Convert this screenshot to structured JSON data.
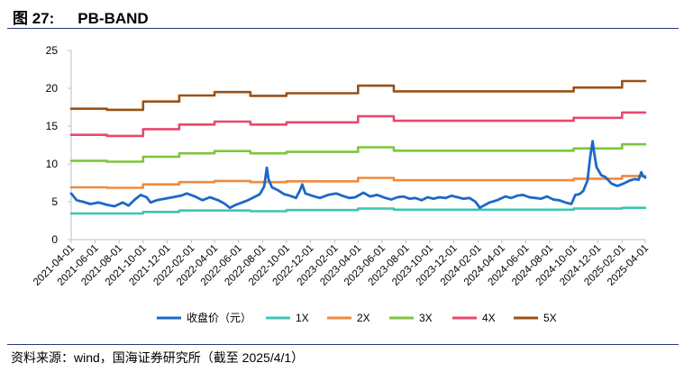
{
  "figure": {
    "label": "图 27:",
    "title": "PB-BAND",
    "source": "资料来源：wind，国海证券研究所（截至 2025/4/1）"
  },
  "chart_data": {
    "type": "line",
    "xlim": [
      "2021-04-01",
      "2025-04-01"
    ],
    "ylim": [
      0,
      25
    ],
    "y_ticks": [
      0,
      5,
      10,
      15,
      20,
      25
    ],
    "x_ticks": [
      "2021-04-01",
      "2021-06-01",
      "2021-08-01",
      "2021-10-01",
      "2021-12-01",
      "2022-02-01",
      "2022-04-01",
      "2022-06-01",
      "2022-08-01",
      "2022-10-01",
      "2022-12-01",
      "2023-02-01",
      "2023-04-01",
      "2023-06-01",
      "2023-08-01",
      "2023-10-01",
      "2023-12-01",
      "2024-02-01",
      "2024-04-01",
      "2024-06-01",
      "2024-08-01",
      "2024-10-01",
      "2024-12-01",
      "2025-02-01",
      "2025-04-01"
    ],
    "grid": false,
    "legend_position": "bottom",
    "series": [
      {
        "name": "收盘价（元）",
        "color": "#1f67c8",
        "step": false,
        "points": [
          [
            "2021-04-01",
            6.1
          ],
          [
            "2021-04-15",
            5.2
          ],
          [
            "2021-05-01",
            5.0
          ],
          [
            "2021-05-20",
            4.7
          ],
          [
            "2021-06-10",
            4.9
          ],
          [
            "2021-07-01",
            4.6
          ],
          [
            "2021-07-20",
            4.4
          ],
          [
            "2021-08-10",
            4.9
          ],
          [
            "2021-08-25",
            4.5
          ],
          [
            "2021-09-10",
            5.3
          ],
          [
            "2021-09-25",
            5.9
          ],
          [
            "2021-10-10",
            5.6
          ],
          [
            "2021-10-20",
            4.9
          ],
          [
            "2021-11-05",
            5.2
          ],
          [
            "2021-11-25",
            5.4
          ],
          [
            "2021-12-15",
            5.6
          ],
          [
            "2022-01-05",
            5.8
          ],
          [
            "2022-01-20",
            6.1
          ],
          [
            "2022-02-10",
            5.7
          ],
          [
            "2022-03-01",
            5.2
          ],
          [
            "2022-03-20",
            5.6
          ],
          [
            "2022-04-10",
            5.2
          ],
          [
            "2022-04-25",
            4.8
          ],
          [
            "2022-05-10",
            4.2
          ],
          [
            "2022-05-25",
            4.6
          ],
          [
            "2022-06-10",
            4.9
          ],
          [
            "2022-06-25",
            5.2
          ],
          [
            "2022-07-10",
            5.6
          ],
          [
            "2022-07-25",
            6.0
          ],
          [
            "2022-08-05",
            7.0
          ],
          [
            "2022-08-12",
            9.5
          ],
          [
            "2022-08-16",
            8.0
          ],
          [
            "2022-08-25",
            6.9
          ],
          [
            "2022-09-10",
            6.5
          ],
          [
            "2022-09-25",
            6.0
          ],
          [
            "2022-10-10",
            5.8
          ],
          [
            "2022-10-25",
            5.5
          ],
          [
            "2022-11-05",
            6.6
          ],
          [
            "2022-11-10",
            7.3
          ],
          [
            "2022-11-18",
            6.1
          ],
          [
            "2022-12-05",
            5.8
          ],
          [
            "2022-12-25",
            5.5
          ],
          [
            "2023-01-15",
            5.9
          ],
          [
            "2023-02-05",
            6.1
          ],
          [
            "2023-02-20",
            5.8
          ],
          [
            "2023-03-10",
            5.5
          ],
          [
            "2023-03-25",
            5.6
          ],
          [
            "2023-04-15",
            6.2
          ],
          [
            "2023-05-01",
            5.7
          ],
          [
            "2023-05-20",
            5.9
          ],
          [
            "2023-06-10",
            5.5
          ],
          [
            "2023-06-25",
            5.3
          ],
          [
            "2023-07-10",
            5.6
          ],
          [
            "2023-07-25",
            5.7
          ],
          [
            "2023-08-10",
            5.4
          ],
          [
            "2023-08-25",
            5.5
          ],
          [
            "2023-09-10",
            5.2
          ],
          [
            "2023-09-25",
            5.6
          ],
          [
            "2023-10-10",
            5.4
          ],
          [
            "2023-10-25",
            5.6
          ],
          [
            "2023-11-10",
            5.5
          ],
          [
            "2023-11-25",
            5.8
          ],
          [
            "2023-12-10",
            5.6
          ],
          [
            "2023-12-25",
            5.4
          ],
          [
            "2024-01-10",
            5.5
          ],
          [
            "2024-01-25",
            5.0
          ],
          [
            "2024-02-05",
            4.2
          ],
          [
            "2024-02-15",
            4.5
          ],
          [
            "2024-03-01",
            4.9
          ],
          [
            "2024-03-20",
            5.2
          ],
          [
            "2024-04-10",
            5.7
          ],
          [
            "2024-04-25",
            5.5
          ],
          [
            "2024-05-10",
            5.8
          ],
          [
            "2024-05-25",
            5.9
          ],
          [
            "2024-06-10",
            5.6
          ],
          [
            "2024-06-25",
            5.5
          ],
          [
            "2024-07-10",
            5.4
          ],
          [
            "2024-07-25",
            5.7
          ],
          [
            "2024-08-10",
            5.3
          ],
          [
            "2024-08-25",
            5.2
          ],
          [
            "2024-09-10",
            4.9
          ],
          [
            "2024-09-25",
            4.7
          ],
          [
            "2024-10-05",
            5.9
          ],
          [
            "2024-10-15",
            6.0
          ],
          [
            "2024-10-25",
            6.4
          ],
          [
            "2024-11-05",
            7.8
          ],
          [
            "2024-11-12",
            11.0
          ],
          [
            "2024-11-18",
            13.0
          ],
          [
            "2024-11-22",
            11.5
          ],
          [
            "2024-11-28",
            9.6
          ],
          [
            "2024-12-10",
            8.5
          ],
          [
            "2024-12-20",
            8.3
          ],
          [
            "2025-01-05",
            7.4
          ],
          [
            "2025-01-20",
            7.1
          ],
          [
            "2025-02-05",
            7.4
          ],
          [
            "2025-02-20",
            7.8
          ],
          [
            "2025-03-05",
            8.0
          ],
          [
            "2025-03-15",
            7.9
          ],
          [
            "2025-03-22",
            8.9
          ],
          [
            "2025-03-26",
            8.4
          ],
          [
            "2025-04-01",
            8.2
          ]
        ]
      },
      {
        "name": "1X",
        "color": "#3ec4b4",
        "step": true,
        "points": [
          [
            "2021-04-01",
            3.45
          ],
          [
            "2021-10-01",
            3.65
          ],
          [
            "2022-01-01",
            3.85
          ],
          [
            "2022-07-01",
            3.75
          ],
          [
            "2022-10-01",
            3.9
          ],
          [
            "2023-04-01",
            4.1
          ],
          [
            "2023-07-01",
            3.95
          ],
          [
            "2024-10-01",
            4.1
          ],
          [
            "2025-02-01",
            4.2
          ],
          [
            "2025-04-01",
            4.2
          ]
        ]
      },
      {
        "name": "2X",
        "color": "#f08a3e",
        "step": true,
        "points": [
          [
            "2021-04-01",
            6.9
          ],
          [
            "2021-07-01",
            6.85
          ],
          [
            "2021-10-01",
            7.3
          ],
          [
            "2022-01-01",
            7.6
          ],
          [
            "2022-04-01",
            7.75
          ],
          [
            "2022-07-01",
            7.6
          ],
          [
            "2022-10-01",
            7.7
          ],
          [
            "2023-04-01",
            8.15
          ],
          [
            "2023-07-01",
            7.85
          ],
          [
            "2024-10-01",
            8.05
          ],
          [
            "2025-02-01",
            8.4
          ],
          [
            "2025-04-01",
            8.4
          ]
        ]
      },
      {
        "name": "3X",
        "color": "#7dc63e",
        "step": true,
        "points": [
          [
            "2021-04-01",
            10.4
          ],
          [
            "2021-07-01",
            10.3
          ],
          [
            "2021-10-01",
            10.95
          ],
          [
            "2022-01-01",
            11.4
          ],
          [
            "2022-04-01",
            11.7
          ],
          [
            "2022-07-01",
            11.4
          ],
          [
            "2022-10-01",
            11.6
          ],
          [
            "2023-04-01",
            12.2
          ],
          [
            "2023-07-01",
            11.75
          ],
          [
            "2024-10-01",
            12.05
          ],
          [
            "2025-02-01",
            12.6
          ],
          [
            "2025-04-01",
            12.6
          ]
        ]
      },
      {
        "name": "4X",
        "color": "#e8486e",
        "step": true,
        "points": [
          [
            "2021-04-01",
            13.85
          ],
          [
            "2021-07-01",
            13.7
          ],
          [
            "2021-10-01",
            14.6
          ],
          [
            "2022-01-01",
            15.2
          ],
          [
            "2022-04-01",
            15.6
          ],
          [
            "2022-07-01",
            15.2
          ],
          [
            "2022-10-01",
            15.5
          ],
          [
            "2023-04-01",
            16.3
          ],
          [
            "2023-07-01",
            15.7
          ],
          [
            "2024-10-01",
            16.1
          ],
          [
            "2025-02-01",
            16.8
          ],
          [
            "2025-04-01",
            16.8
          ]
        ]
      },
      {
        "name": "5X",
        "color": "#9c5014",
        "step": true,
        "points": [
          [
            "2021-04-01",
            17.3
          ],
          [
            "2021-07-01",
            17.15
          ],
          [
            "2021-10-01",
            18.25
          ],
          [
            "2022-01-01",
            19.05
          ],
          [
            "2022-04-01",
            19.5
          ],
          [
            "2022-07-01",
            19.0
          ],
          [
            "2022-10-01",
            19.35
          ],
          [
            "2023-04-01",
            20.35
          ],
          [
            "2023-07-01",
            19.6
          ],
          [
            "2024-10-01",
            20.1
          ],
          [
            "2025-02-01",
            20.95
          ],
          [
            "2025-04-01",
            20.95
          ]
        ]
      }
    ]
  }
}
